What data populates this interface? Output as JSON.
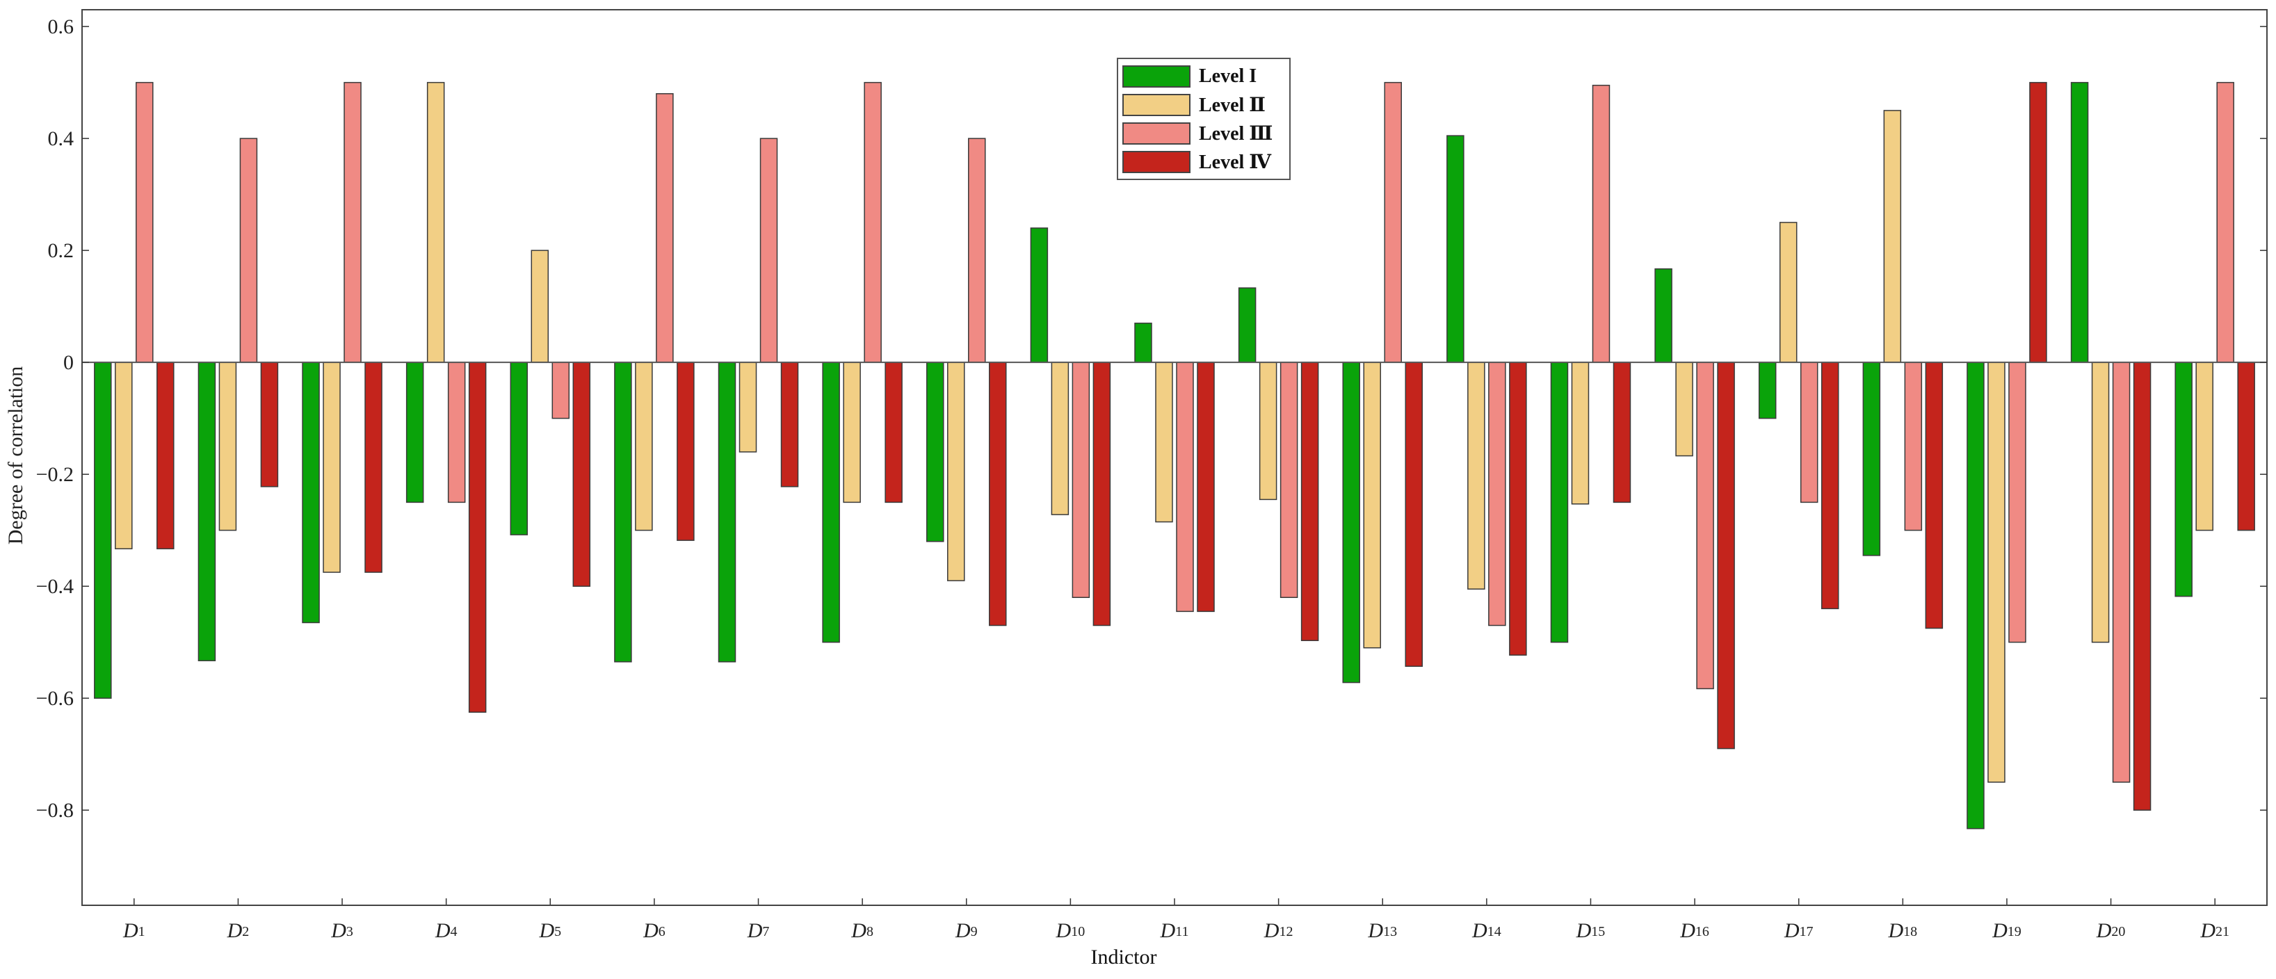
{
  "chart_data": {
    "type": "bar",
    "xlabel": "Indictor",
    "ylabel": "Degree of correlation",
    "ylim": [
      -0.97,
      0.63
    ],
    "yticks": [
      -0.8,
      -0.6,
      -0.4,
      -0.2,
      0,
      0.2,
      0.4,
      0.6
    ],
    "ytick_labels": [
      "−0.8",
      "−0.6",
      "−0.4",
      "−0.2",
      "0",
      "0.2",
      "0.4",
      "0.6"
    ],
    "grid": false,
    "legend_position": "top-center",
    "categories": [
      {
        "base": "D",
        "sub": "1"
      },
      {
        "base": "D",
        "sub": "2"
      },
      {
        "base": "D",
        "sub": "3"
      },
      {
        "base": "D",
        "sub": "4"
      },
      {
        "base": "D",
        "sub": "5"
      },
      {
        "base": "D",
        "sub": "6"
      },
      {
        "base": "D",
        "sub": "7"
      },
      {
        "base": "D",
        "sub": "8"
      },
      {
        "base": "D",
        "sub": "9"
      },
      {
        "base": "D",
        "sub": "10"
      },
      {
        "base": "D",
        "sub": "11"
      },
      {
        "base": "D",
        "sub": "12"
      },
      {
        "base": "D",
        "sub": "13"
      },
      {
        "base": "D",
        "sub": "14"
      },
      {
        "base": "D",
        "sub": "15"
      },
      {
        "base": "D",
        "sub": "16"
      },
      {
        "base": "D",
        "sub": "17"
      },
      {
        "base": "D",
        "sub": "18"
      },
      {
        "base": "D",
        "sub": "19"
      },
      {
        "base": "D",
        "sub": "20"
      },
      {
        "base": "D",
        "sub": "21"
      }
    ],
    "series": [
      {
        "name": "Level I",
        "color": "#0aa30a",
        "values": [
          -0.6,
          -0.533,
          -0.465,
          -0.25,
          -0.308,
          -0.535,
          -0.535,
          -0.5,
          -0.32,
          0.24,
          0.07,
          0.133,
          -0.572,
          0.405,
          -0.5,
          0.167,
          -0.1,
          -0.345,
          -0.833,
          0.5,
          -0.418
        ]
      },
      {
        "name": "Level Ⅱ",
        "color": "#f2cf85",
        "values": [
          -0.333,
          -0.3,
          -0.375,
          0.5,
          0.2,
          -0.3,
          -0.16,
          -0.25,
          -0.39,
          -0.272,
          -0.285,
          -0.245,
          -0.51,
          -0.405,
          -0.253,
          -0.167,
          0.25,
          0.45,
          -0.75,
          -0.5,
          -0.3
        ]
      },
      {
        "name": "Level Ⅲ",
        "color": "#f08a84",
        "values": [
          0.5,
          0.4,
          0.5,
          -0.25,
          -0.1,
          0.48,
          0.4,
          0.5,
          0.4,
          -0.42,
          -0.445,
          -0.42,
          0.5,
          -0.47,
          0.495,
          -0.583,
          -0.25,
          -0.3,
          -0.5,
          -0.75,
          0.5
        ]
      },
      {
        "name": "Level Ⅳ",
        "color": "#c4241c",
        "values": [
          -0.333,
          -0.222,
          -0.375,
          -0.625,
          -0.4,
          -0.318,
          -0.222,
          -0.25,
          -0.47,
          -0.47,
          -0.445,
          -0.497,
          -0.543,
          -0.523,
          -0.25,
          -0.69,
          -0.44,
          -0.475,
          0.5,
          -0.8,
          -0.3
        ]
      }
    ]
  }
}
